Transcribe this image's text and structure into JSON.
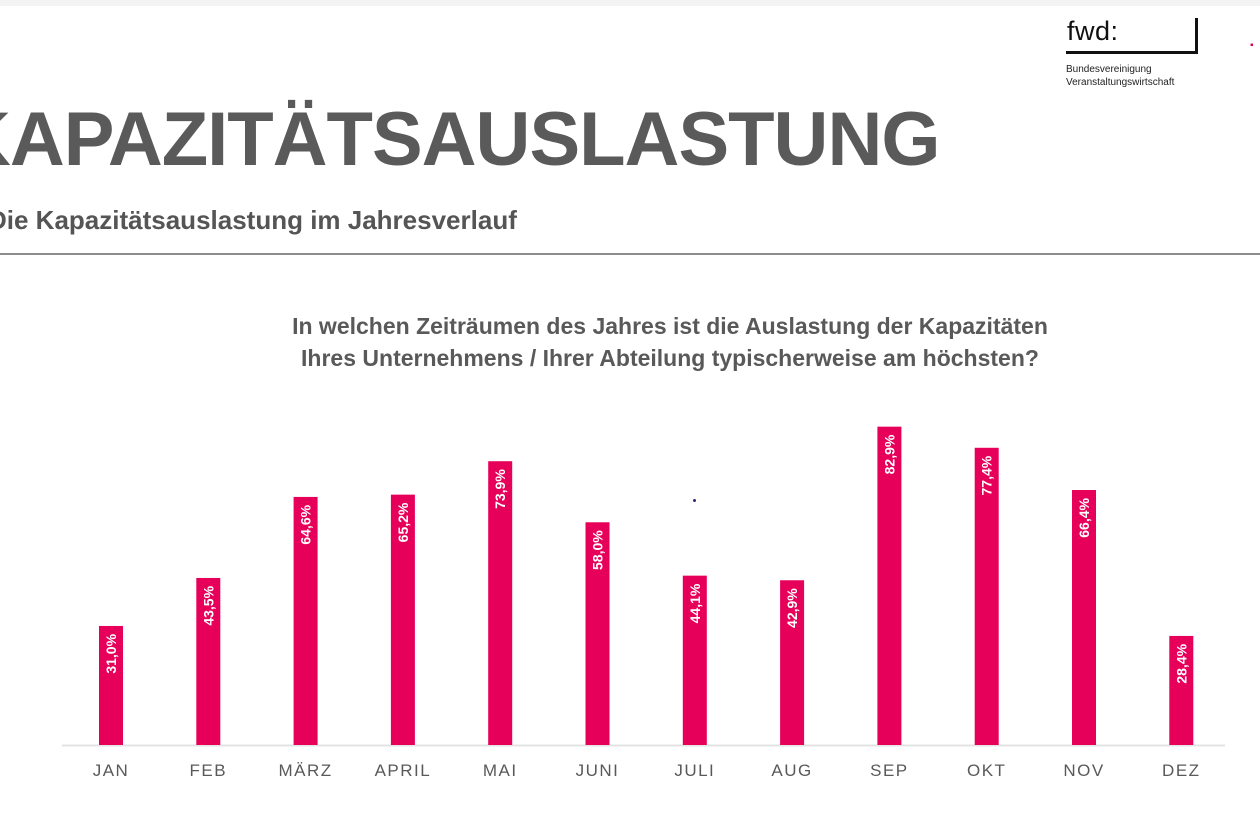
{
  "header": {
    "logo": {
      "name": "fwd:",
      "line1": "Bundesvereinigung",
      "line2": "Veranstaltungswirtschaft"
    },
    "title": "KAPAZITÄTSAUSLASTUNG",
    "subtitle": "Die Kapazitätsauslastung im Jahresverlauf"
  },
  "colors": {
    "bar": "#e6005a",
    "title": "#5a5a5a",
    "axis_text": "#595959",
    "label_text": "#ffffff"
  },
  "chart_data": {
    "type": "bar",
    "title": "In welchen Zeiträumen des Jahres ist die Auslastung der Kapazitäten Ihres Unternehmens / Ihrer Abteilung typischerweise am höchsten?",
    "title_lines": [
      "In welchen Zeiträumen des Jahres ist die Auslastung der Kapazitäten",
      "Ihres Unternehmens / Ihrer Abteilung typischerweise am höchsten?"
    ],
    "categories": [
      "JAN",
      "FEB",
      "MÄRZ",
      "APRIL",
      "MAI",
      "JUNI",
      "JULI",
      "AUG",
      "SEP",
      "OKT",
      "NOV",
      "DEZ"
    ],
    "values": [
      31.0,
      43.5,
      64.6,
      65.2,
      73.9,
      58.0,
      44.1,
      42.9,
      82.9,
      77.4,
      66.4,
      28.4
    ],
    "data_labels": [
      "31,0%",
      "43,5%",
      "64,6%",
      "65,2%",
      "73,9%",
      "58,0%",
      "44,1%",
      "42,9%",
      "82,9%",
      "77,4%",
      "66,4%",
      "28,4%"
    ],
    "ylim": [
      0,
      100
    ],
    "unit": "%",
    "grid": false,
    "legend": "none"
  }
}
